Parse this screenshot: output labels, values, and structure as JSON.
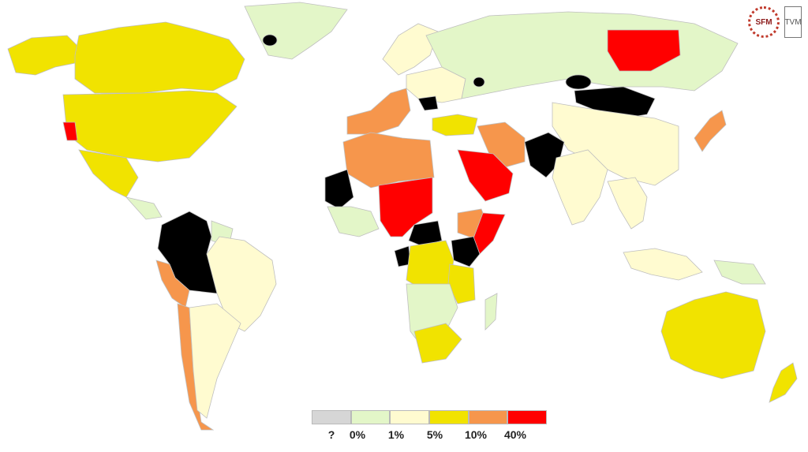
{
  "legend": {
    "labels": [
      "?",
      "0%",
      "1%",
      "5%",
      "10%",
      "40%"
    ],
    "colors": [
      "#d6d6d6",
      "#e3f6c8",
      "#fffbd0",
      "#f1e300",
      "#f6964c",
      "#ff0000"
    ]
  },
  "logos": {
    "left": "SFM",
    "right": "TVM"
  },
  "regions": [
    {
      "id": "alaska",
      "cat": 3
    },
    {
      "id": "canada",
      "cat": 3
    },
    {
      "id": "usa",
      "cat": 3
    },
    {
      "id": "california",
      "cat": 5
    },
    {
      "id": "greenland",
      "cat": 1
    },
    {
      "id": "greenland-dot",
      "cat": 6
    },
    {
      "id": "mexico",
      "cat": 3
    },
    {
      "id": "central-america",
      "cat": 1
    },
    {
      "id": "venezuela-colombia",
      "cat": 6
    },
    {
      "id": "peru",
      "cat": 4
    },
    {
      "id": "brazil",
      "cat": 2
    },
    {
      "id": "chile",
      "cat": 4
    },
    {
      "id": "argentina",
      "cat": 2
    },
    {
      "id": "guianas",
      "cat": 1
    },
    {
      "id": "scandinavia",
      "cat": 2
    },
    {
      "id": "western-europe",
      "cat": 4
    },
    {
      "id": "eastern-europe",
      "cat": 2
    },
    {
      "id": "romania",
      "cat": 6
    },
    {
      "id": "turkey",
      "cat": 3
    },
    {
      "id": "russia",
      "cat": 1
    },
    {
      "id": "siberia-east",
      "cat": 5
    },
    {
      "id": "kazakh-dot",
      "cat": 6
    },
    {
      "id": "mongolia",
      "cat": 6
    },
    {
      "id": "china",
      "cat": 2
    },
    {
      "id": "japan",
      "cat": 4
    },
    {
      "id": "india",
      "cat": 2
    },
    {
      "id": "pakistan",
      "cat": 6
    },
    {
      "id": "iran",
      "cat": 4
    },
    {
      "id": "saudi-arabia",
      "cat": 5
    },
    {
      "id": "north-africa",
      "cat": 4
    },
    {
      "id": "mauritania",
      "cat": 6
    },
    {
      "id": "sahel",
      "cat": 5
    },
    {
      "id": "west-africa",
      "cat": 1
    },
    {
      "id": "central-africa-red",
      "cat": 6
    },
    {
      "id": "congo",
      "cat": 3
    },
    {
      "id": "ethiopia",
      "cat": 4
    },
    {
      "id": "somalia",
      "cat": 5
    },
    {
      "id": "kenya",
      "cat": 6
    },
    {
      "id": "east-africa",
      "cat": 3
    },
    {
      "id": "southern-africa",
      "cat": 1
    },
    {
      "id": "south-africa",
      "cat": 3
    },
    {
      "id": "madagascar",
      "cat": 1
    },
    {
      "id": "southeast-asia",
      "cat": 2
    },
    {
      "id": "indonesia",
      "cat": 2
    },
    {
      "id": "papua",
      "cat": 1
    },
    {
      "id": "australia",
      "cat": 3
    },
    {
      "id": "new-zealand",
      "cat": 3
    }
  ]
}
